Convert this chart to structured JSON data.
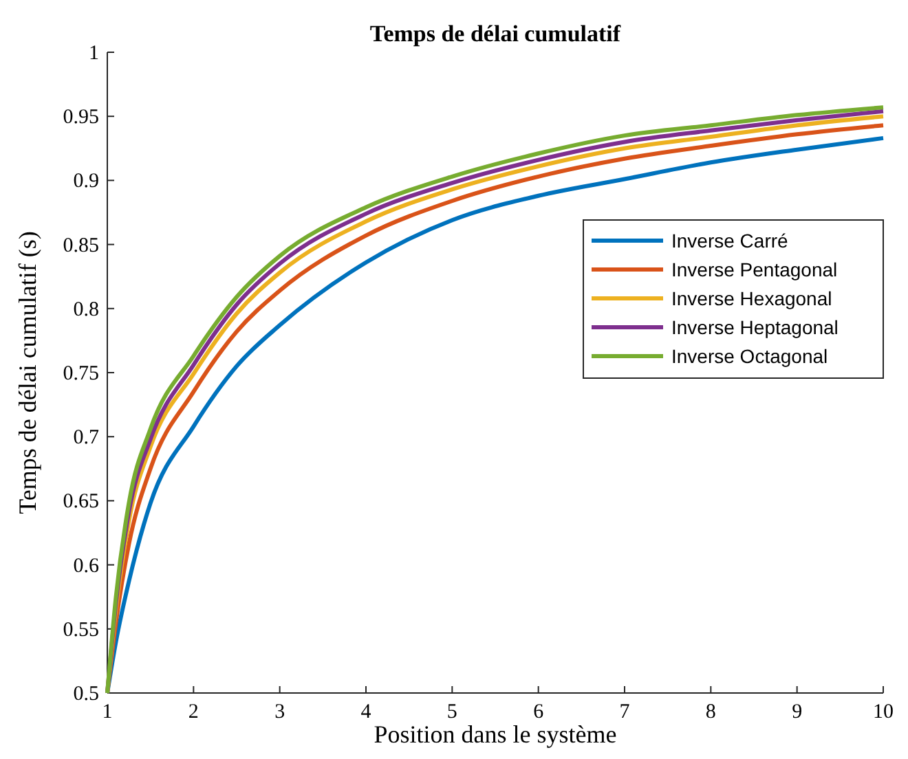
{
  "chart_data": {
    "type": "line",
    "title": "Temps de délai cumulatif",
    "xlabel": "Position dans le système",
    "ylabel": "Temps de délai cumulatif (s)",
    "x": [
      1,
      1.1,
      1.25,
      1.5,
      2,
      2.5,
      3,
      4,
      5,
      6,
      7,
      8,
      9,
      10
    ],
    "xlim": [
      1,
      10
    ],
    "xticks": [
      1,
      2,
      3,
      4,
      5,
      6,
      7,
      8,
      9,
      10
    ],
    "ylim": [
      0.5,
      1
    ],
    "yticks": [
      0.5,
      0.55,
      0.6,
      0.65,
      0.7,
      0.75,
      0.8,
      0.85,
      0.9,
      0.95,
      1
    ],
    "grid": false,
    "legend": "right",
    "marker": "none",
    "line_style": "solid",
    "series": [
      {
        "name": "Inverse Carré",
        "color": "#0072bd",
        "values": [
          0.5,
          0.54,
          0.587,
          0.648,
          0.708,
          0.755,
          0.787,
          0.836,
          0.869,
          0.888,
          0.901,
          0.914,
          0.924,
          0.933
        ]
      },
      {
        "name": "Inverse Pentagonal",
        "color": "#d95319",
        "values": [
          0.5,
          0.555,
          0.616,
          0.675,
          0.735,
          0.782,
          0.814,
          0.857,
          0.884,
          0.903,
          0.917,
          0.927,
          0.936,
          0.943
        ]
      },
      {
        "name": "Inverse Hexagonal",
        "color": "#edb120",
        "values": [
          0.5,
          0.565,
          0.634,
          0.692,
          0.749,
          0.796,
          0.828,
          0.868,
          0.893,
          0.911,
          0.925,
          0.934,
          0.943,
          0.95
        ]
      },
      {
        "name": "Inverse Heptagonal",
        "color": "#7e2f8e",
        "values": [
          0.5,
          0.57,
          0.641,
          0.698,
          0.756,
          0.803,
          0.835,
          0.874,
          0.898,
          0.916,
          0.93,
          0.939,
          0.947,
          0.954
        ]
      },
      {
        "name": "Inverse Octagonal",
        "color": "#77ac30",
        "values": [
          0.5,
          0.575,
          0.648,
          0.706,
          0.763,
          0.809,
          0.841,
          0.879,
          0.903,
          0.921,
          0.935,
          0.943,
          0.951,
          0.957
        ]
      }
    ]
  }
}
